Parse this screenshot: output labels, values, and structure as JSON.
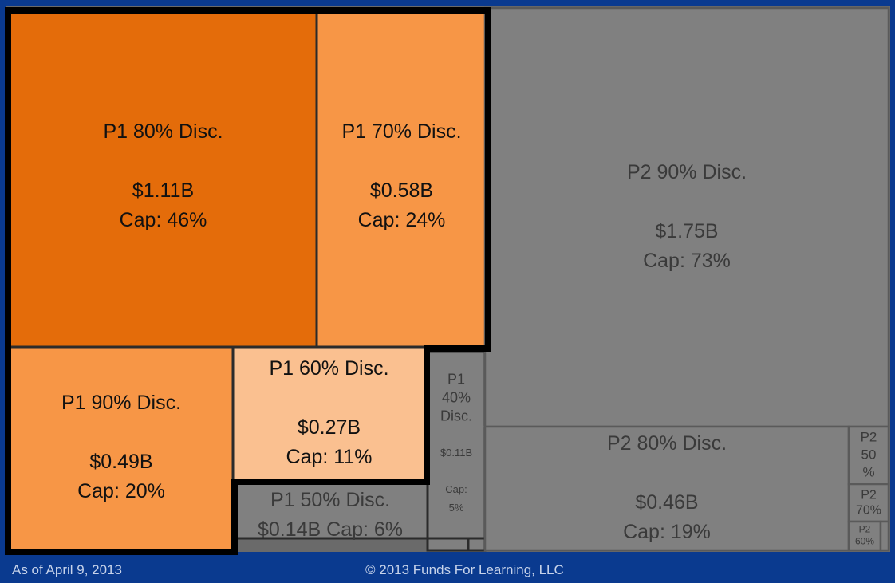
{
  "footer": {
    "as_of": "As of April 9, 2013",
    "copyright": "© 2013 Funds For Learning, LLC"
  },
  "colors": {
    "background": "#0a3a8f",
    "p1_80": "#e46c0a",
    "p1_70": "#f79646",
    "p1_90": "#f79646",
    "p1_60": "#fac090",
    "p2": "#808080",
    "p1_text": "#111111",
    "p2_text": "#3a3a3a",
    "p1_highlight_border": "#000000"
  },
  "chart_data": {
    "type": "treemap",
    "title": "",
    "tiles": [
      {
        "key": "p1_80",
        "group": "P1",
        "lines": [
          "P1 80% Disc.",
          "",
          "$1.11B",
          "Cap: 46%"
        ],
        "value_b": 1.11,
        "cap_pct": 46
      },
      {
        "key": "p1_70",
        "group": "P1",
        "lines": [
          "P1 70% Disc.",
          "",
          "$0.58B",
          "Cap: 24%"
        ],
        "value_b": 0.58,
        "cap_pct": 24
      },
      {
        "key": "p1_90",
        "group": "P1",
        "lines": [
          "P1 90% Disc.",
          "",
          "$0.49B",
          "Cap: 20%"
        ],
        "value_b": 0.49,
        "cap_pct": 20
      },
      {
        "key": "p1_60",
        "group": "P1",
        "lines": [
          "P1 60% Disc.",
          "",
          "$0.27B",
          "Cap: 11%"
        ],
        "value_b": 0.27,
        "cap_pct": 11
      },
      {
        "key": "p1_50",
        "group": "P1",
        "lines": [
          "P1 50% Disc.",
          "$0.14B Cap: 6%"
        ],
        "value_b": 0.14,
        "cap_pct": 6
      },
      {
        "key": "p1_40",
        "group": "P1",
        "lines": [
          "P1",
          "40%",
          "Disc.",
          "",
          "$0.11B",
          "",
          "Cap:",
          "5%"
        ],
        "value_b": 0.11,
        "cap_pct": 5
      },
      {
        "key": "p1_small_a",
        "group": "P1",
        "lines": []
      },
      {
        "key": "p1_small_b",
        "group": "P1",
        "lines": []
      },
      {
        "key": "p2_90",
        "group": "P2",
        "lines": [
          "P2 90% Disc.",
          "",
          "$1.75B",
          "Cap: 73%"
        ],
        "value_b": 1.75,
        "cap_pct": 73
      },
      {
        "key": "p2_80",
        "group": "P2",
        "lines": [
          "P2 80% Disc.",
          "",
          "$0.46B",
          "Cap: 19%"
        ],
        "value_b": 0.46,
        "cap_pct": 19
      },
      {
        "key": "p2_50",
        "group": "P2",
        "lines": [
          "P2",
          "50",
          "%"
        ]
      },
      {
        "key": "p2_70",
        "group": "P2",
        "lines": [
          "P2",
          "70%"
        ]
      },
      {
        "key": "p2_60",
        "group": "P2",
        "lines": [
          "P2",
          "60%"
        ]
      },
      {
        "key": "p2_small",
        "group": "P2",
        "lines": []
      }
    ]
  }
}
